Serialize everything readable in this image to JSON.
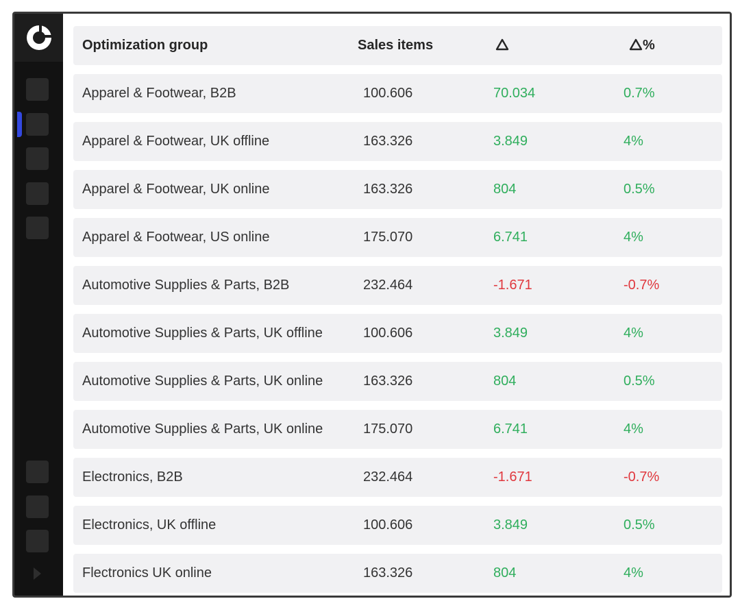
{
  "sidebar": {
    "logo_icon": "brand-logo-icon",
    "top_items": [
      "nav-item-1",
      "nav-item-2",
      "nav-item-3",
      "nav-item-4",
      "nav-item-5"
    ],
    "bottom_items": [
      "nav-item-6",
      "nav-item-7",
      "nav-item-8"
    ],
    "active_color": "#3348e0"
  },
  "table": {
    "headers": {
      "group": "Optimization group",
      "sales": "Sales items",
      "delta_icon": "delta-triangle-icon",
      "delta_pct_suffix": "%"
    },
    "rows": [
      {
        "group": "Apparel & Footwear, B2B",
        "sales": "100.606",
        "delta": "70.034",
        "pct": "0.7%",
        "trend": "pos"
      },
      {
        "group": "Apparel & Footwear, UK offline",
        "sales": "163.326",
        "delta": "3.849",
        "pct": "4%",
        "trend": "pos"
      },
      {
        "group": "Apparel & Footwear, UK online",
        "sales": "163.326",
        "delta": "804",
        "pct": "0.5%",
        "trend": "pos"
      },
      {
        "group": "Apparel & Footwear, US online",
        "sales": "175.070",
        "delta": "6.741",
        "pct": "4%",
        "trend": "pos"
      },
      {
        "group": "Automotive Supplies & Parts, B2B",
        "sales": "232.464",
        "delta": "-1.671",
        "pct": "-0.7%",
        "trend": "neg"
      },
      {
        "group": "Automotive Supplies & Parts, UK offline",
        "sales": "100.606",
        "delta": "3.849",
        "pct": "4%",
        "trend": "pos"
      },
      {
        "group": "Automotive Supplies & Parts, UK online",
        "sales": "163.326",
        "delta": "804",
        "pct": "0.5%",
        "trend": "pos"
      },
      {
        "group": "Automotive Supplies & Parts, UK online",
        "sales": "175.070",
        "delta": "6.741",
        "pct": "4%",
        "trend": "pos"
      },
      {
        "group": "Electronics, B2B",
        "sales": "232.464",
        "delta": "-1.671",
        "pct": "-0.7%",
        "trend": "neg"
      },
      {
        "group": "Electronics, UK offline",
        "sales": "100.606",
        "delta": "3.849",
        "pct": "0.5%",
        "trend": "pos"
      },
      {
        "group": "Flectronics UK online",
        "sales": "163.326",
        "delta": "804",
        "pct": "4%",
        "trend": "pos"
      }
    ]
  },
  "colors": {
    "positive": "#2fae5c",
    "negative": "#e0383e",
    "row_bg": "#f1f1f3",
    "sidebar_bg": "#121212"
  }
}
